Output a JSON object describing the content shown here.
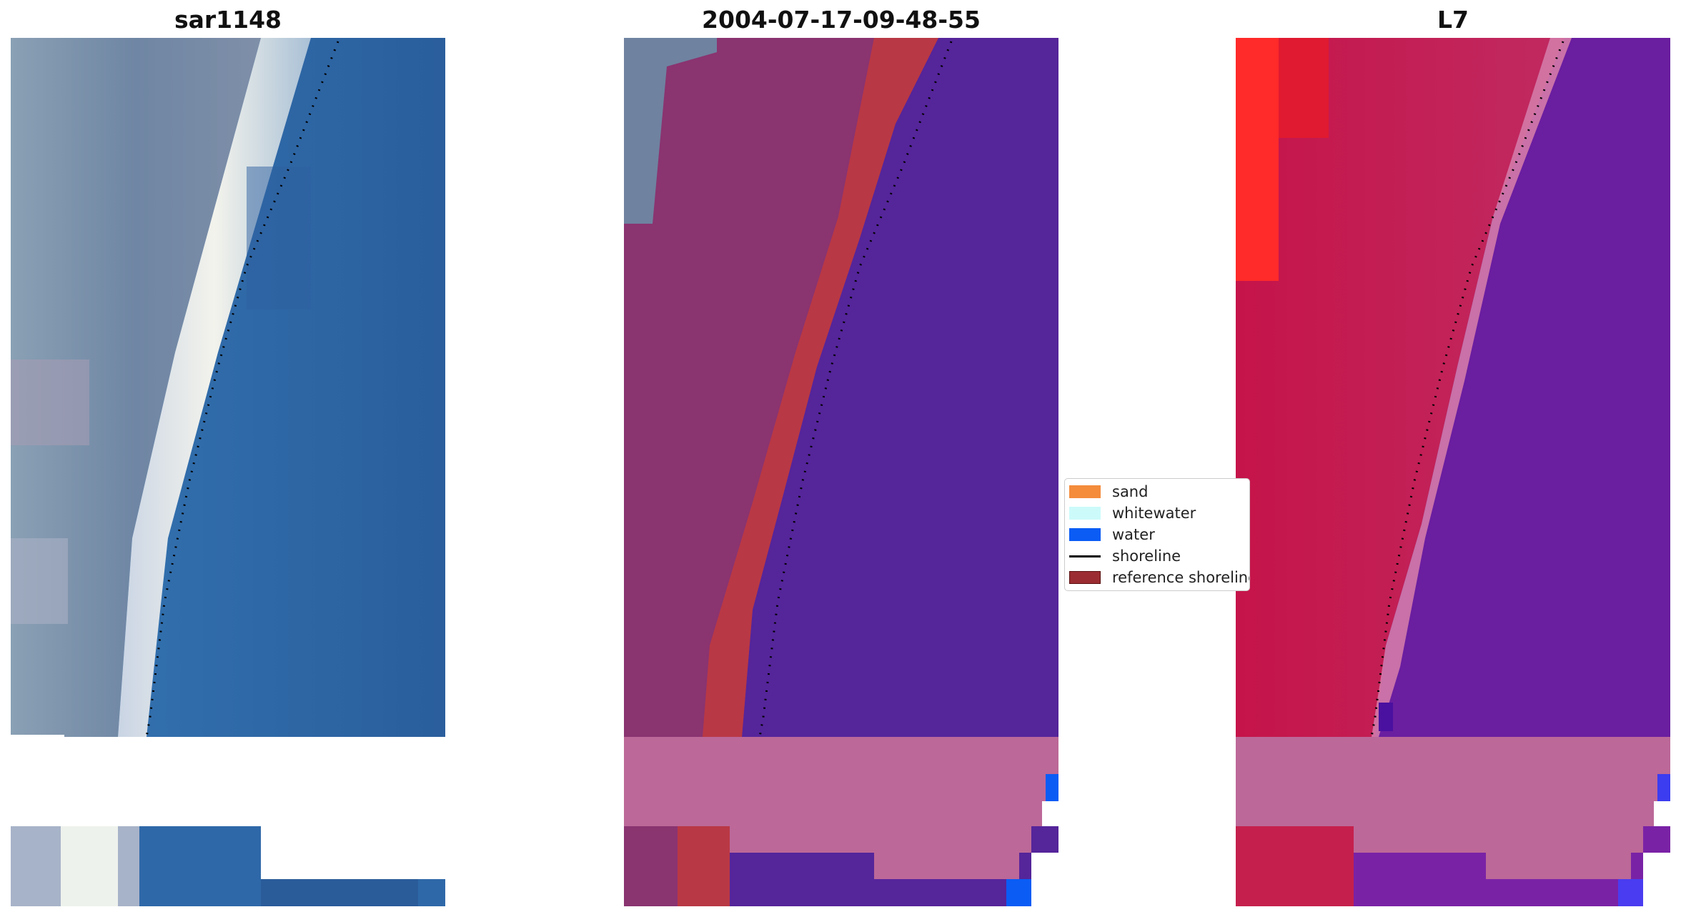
{
  "panels": [
    {
      "title": "sar1148"
    },
    {
      "title": "2004-07-17-09-48-55"
    },
    {
      "title": "L7"
    }
  ],
  "legend": {
    "items": [
      {
        "label": "sand",
        "color": "#f48c3c",
        "kind": "patch"
      },
      {
        "label": "whitewater",
        "color": "#ccfafa",
        "kind": "patch"
      },
      {
        "label": "water",
        "color": "#0a5cf5",
        "kind": "patch"
      },
      {
        "label": "shoreline",
        "color": "#000000",
        "kind": "line"
      },
      {
        "label": "reference shoreline",
        "color": "#9b2d32",
        "kind": "patch"
      }
    ]
  },
  "colors": {
    "sea_blue": "#2f6aa8",
    "beach_white": "#dde6ea",
    "land_grey_blue": "#7a8ea8",
    "classified_water": "#55259a",
    "classified_sand_band": "#b93845",
    "classified_land": "#8a3470",
    "no_data_pink": "#bc6898",
    "false_color_land": "#c5204d",
    "false_color_water": "#6a1ea0"
  }
}
